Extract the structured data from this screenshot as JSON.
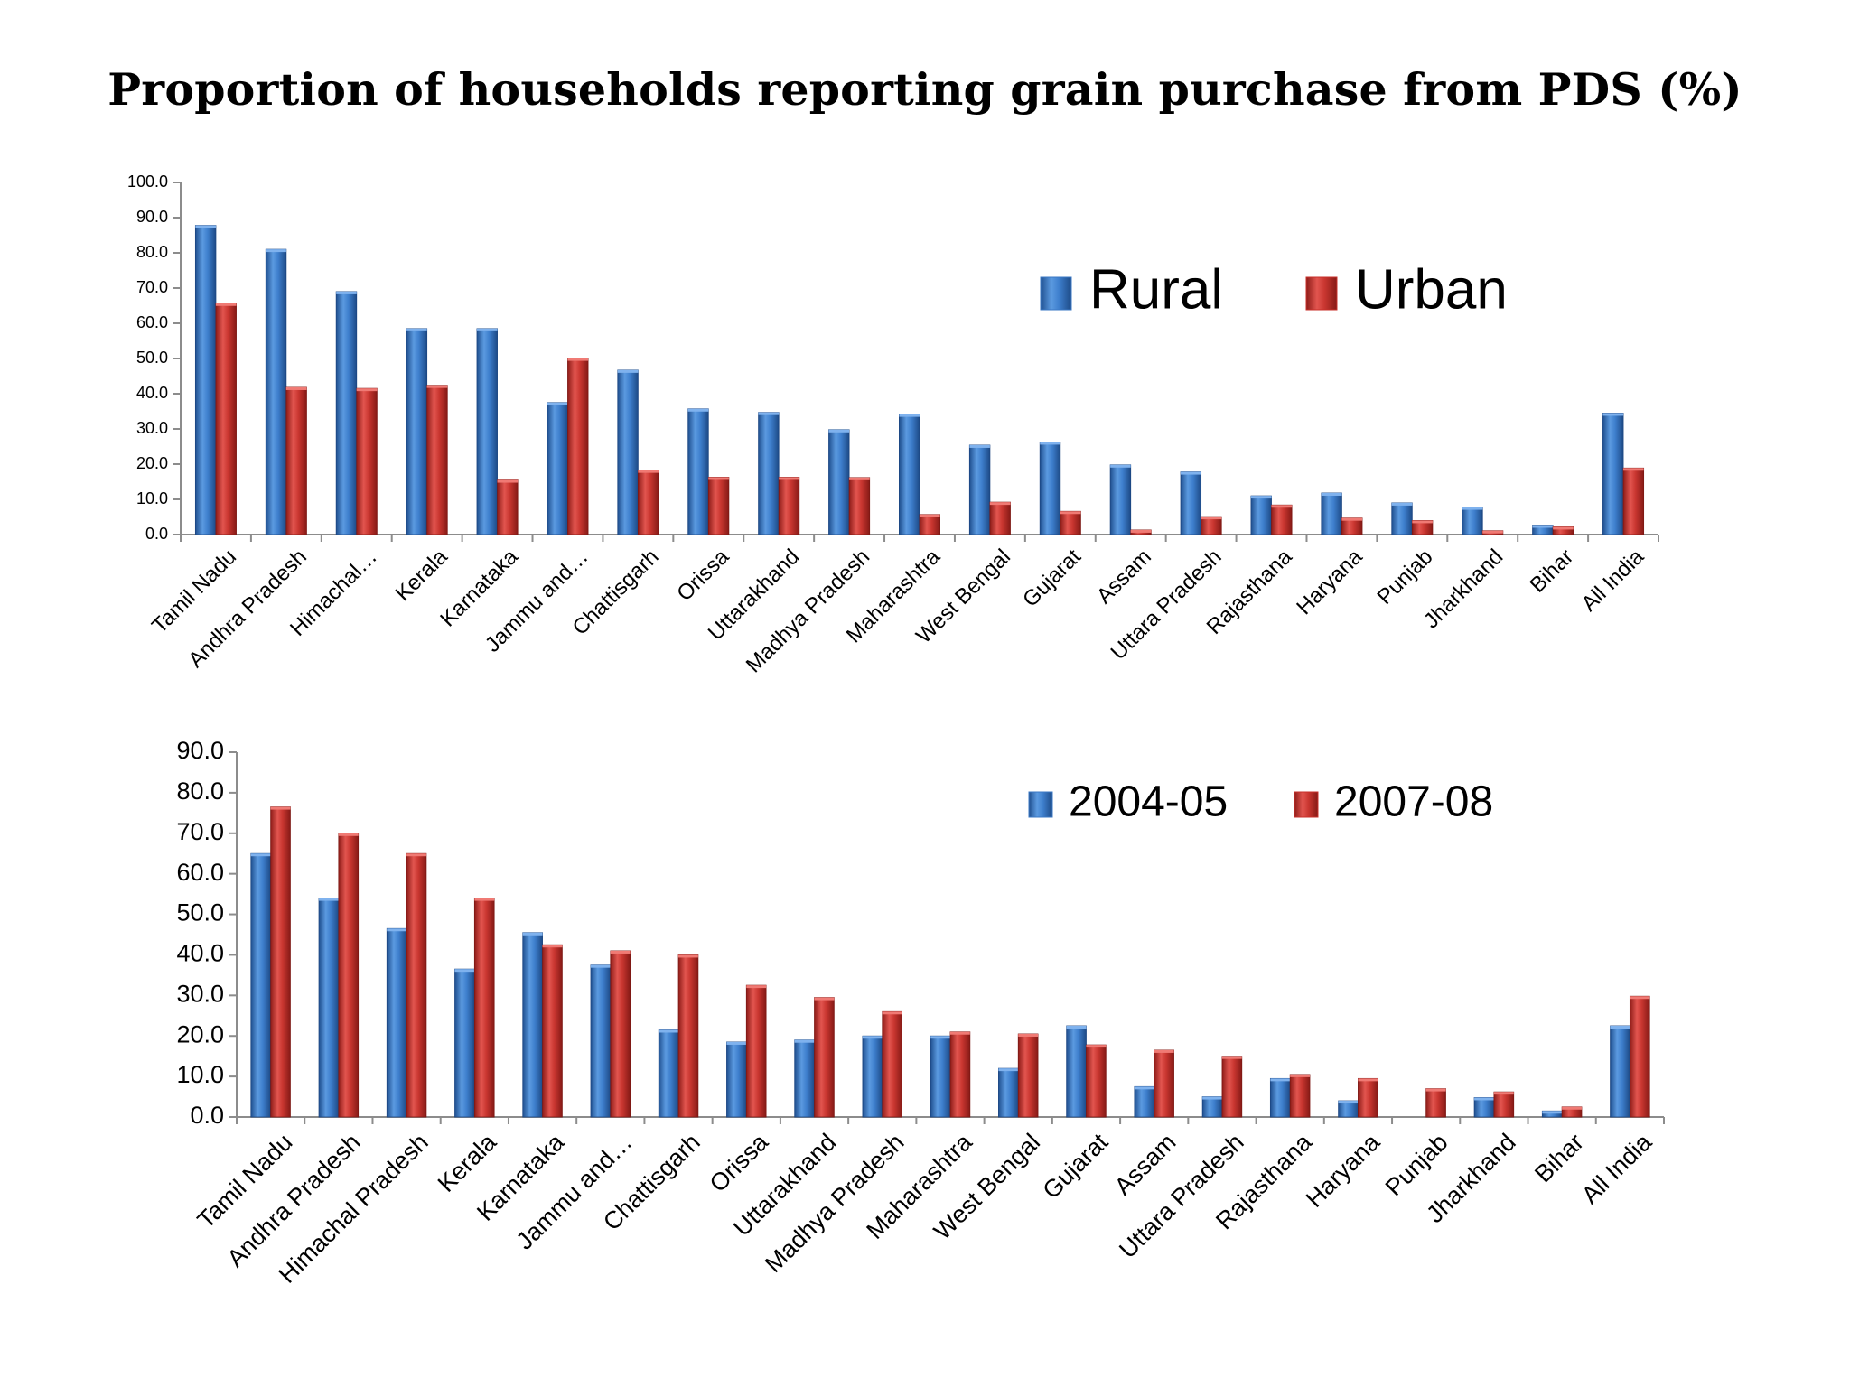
{
  "title": "Proportion of households reporting grain purchase from PDS (%)",
  "colors": {
    "series_a": "#3b78c4",
    "series_b": "#c8302b",
    "axis": "#8c8c8c"
  },
  "chart_data": [
    {
      "type": "bar",
      "categories": [
        "Tamil Nadu",
        "Andhra Pradesh",
        "Himachal…",
        "Kerala",
        "Karnataka",
        "Jammu and…",
        "Chattisgarh",
        "Orissa",
        "Uttarakhand",
        "Madhya Pradesh",
        "Maharashtra",
        "West Bengal",
        "Gujarat",
        "Assam",
        "Uttara Pradesh",
        "Rajasthana",
        "Haryana",
        "Punjab",
        "Jharkhand",
        "Bihar",
        "All India"
      ],
      "series": [
        {
          "name": "Rural",
          "values": [
            87.8,
            81.0,
            69.0,
            58.5,
            58.5,
            37.5,
            46.7,
            35.7,
            34.7,
            29.8,
            34.2,
            25.4,
            26.3,
            19.8,
            17.8,
            11.0,
            11.8,
            9.0,
            7.8,
            2.7,
            34.5
          ]
        },
        {
          "name": "Urban",
          "values": [
            65.7,
            41.8,
            41.5,
            42.4,
            15.5,
            50.1,
            18.3,
            16.3,
            16.3,
            16.2,
            5.7,
            9.2,
            6.6,
            1.3,
            5.1,
            8.4,
            4.7,
            4.0,
            1.1,
            2.2,
            18.9
          ]
        }
      ],
      "ylim": [
        0,
        100
      ],
      "yticks": [
        "0.0",
        "10.0",
        "20.0",
        "30.0",
        "40.0",
        "50.0",
        "60.0",
        "70.0",
        "80.0",
        "90.0",
        "100.0"
      ],
      "legend": [
        "Rural",
        "Urban"
      ],
      "legend_position": "top-right"
    },
    {
      "type": "bar",
      "categories": [
        "Tamil Nadu",
        "Andhra Pradesh",
        "Himachal Pradesh",
        "Kerala",
        "Karnataka",
        "Jammu and…",
        "Chattisgarh",
        "Orissa",
        "Uttarakhand",
        "Madhya Pradesh",
        "Maharashtra",
        "West Bengal",
        "Gujarat",
        "Assam",
        "Uttara Pradesh",
        "Rajasthana",
        "Haryana",
        "Punjab",
        "Jharkhand",
        "Bihar",
        "All India"
      ],
      "series": [
        {
          "name": "2004-05",
          "values": [
            65.0,
            54.0,
            46.5,
            36.5,
            45.5,
            37.5,
            21.5,
            18.5,
            19.0,
            20.0,
            20.0,
            12.0,
            22.5,
            7.5,
            5.0,
            9.5,
            4.0,
            0,
            4.8,
            1.5,
            22.5
          ]
        },
        {
          "name": "2007-08",
          "values": [
            76.5,
            70.0,
            65.0,
            54.0,
            42.5,
            41.0,
            40.0,
            32.5,
            29.5,
            26.0,
            21.0,
            20.5,
            17.8,
            16.5,
            15.0,
            10.5,
            9.5,
            7.0,
            6.2,
            2.5,
            29.8
          ]
        }
      ],
      "ylim": [
        0,
        90
      ],
      "yticks": [
        "0.0",
        "10.0",
        "20.0",
        "30.0",
        "40.0",
        "50.0",
        "60.0",
        "70.0",
        "80.0",
        "90.0"
      ],
      "legend": [
        "2004-05",
        "2007-08"
      ],
      "legend_position": "top-right"
    }
  ]
}
